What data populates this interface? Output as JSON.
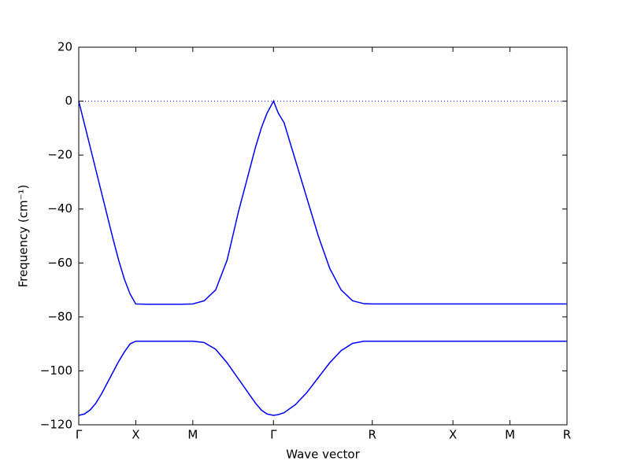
{
  "chart_data": {
    "type": "line",
    "xlabel": "Wave vector",
    "ylabel": "Frequency (cm⁻¹)",
    "x": [
      0,
      0.05,
      0.1,
      0.15,
      0.2,
      0.25,
      0.3,
      0.35,
      0.4,
      0.45,
      0.5,
      0.6,
      0.7,
      0.8,
      0.9,
      1.0,
      1.1,
      1.2,
      1.3,
      1.4,
      1.5,
      1.55,
      1.6,
      1.65,
      1.707,
      1.75,
      1.8,
      1.9,
      2.0,
      2.1,
      2.2,
      2.3,
      2.4,
      2.5,
      2.573,
      2.8,
      3.0,
      3.28,
      3.5,
      3.78,
      4.0,
      4.28
    ],
    "series": [
      {
        "color": "#0000ff",
        "values": [
          0,
          -8.5,
          -17,
          -25.5,
          -34,
          -42.5,
          -51,
          -59,
          -66,
          -71.5,
          -75.2,
          -75.3,
          -75.3,
          -75.3,
          -75.3,
          -75.2,
          -74,
          -70,
          -59,
          -41,
          -25,
          -17,
          -10,
          -4.5,
          0,
          -4.5,
          -8,
          -22,
          -36,
          -50,
          -62,
          -70,
          -74,
          -75.1,
          -75.2,
          -75.2,
          -75.2,
          -75.2,
          -75.2,
          -75.2,
          -75.2,
          -75.2
        ]
      },
      {
        "color": "#0000ff",
        "values": [
          -116.5,
          -116,
          -114.5,
          -112,
          -108.5,
          -104.5,
          -100.5,
          -96.5,
          -93,
          -90,
          -89,
          -89,
          -89,
          -89,
          -89,
          -89,
          -89.5,
          -92,
          -97,
          -103,
          -109,
          -112,
          -114.5,
          -116,
          -116.5,
          -116.2,
          -115.5,
          -112.5,
          -108,
          -102.5,
          -97,
          -92.5,
          -89.8,
          -89,
          -89,
          -89,
          -89,
          -89,
          -89,
          -89,
          -89,
          -89
        ]
      }
    ],
    "xlim": [
      0,
      4.28
    ],
    "xticks": [
      {
        "value": 0,
        "label": "Γ"
      },
      {
        "value": 0.5,
        "label": "X"
      },
      {
        "value": 1.0,
        "label": "M"
      },
      {
        "value": 1.707,
        "label": "Γ"
      },
      {
        "value": 2.573,
        "label": "R"
      },
      {
        "value": 3.28,
        "label": "X"
      },
      {
        "value": 3.78,
        "label": "M"
      },
      {
        "value": 4.28,
        "label": "R"
      }
    ],
    "ylim": [
      -120,
      20
    ],
    "yticks": [
      {
        "value": -120,
        "label": "−120"
      },
      {
        "value": -100,
        "label": "−100"
      },
      {
        "value": -80,
        "label": "−80"
      },
      {
        "value": -60,
        "label": "−60"
      },
      {
        "value": -40,
        "label": "−40"
      },
      {
        "value": -20,
        "label": "−20"
      },
      0,
      20
    ],
    "hline": 0,
    "grid": false
  }
}
